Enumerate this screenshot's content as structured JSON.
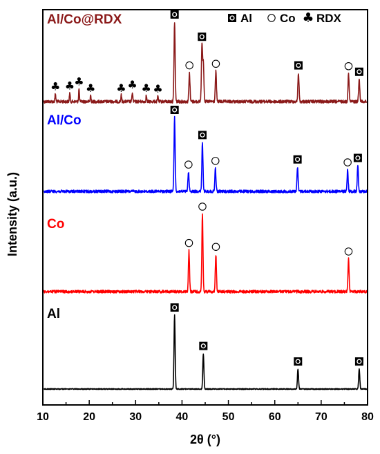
{
  "chart_data": {
    "type": "line",
    "xlabel": "2θ (°)",
    "ylabel": "Intensity (a.u.)",
    "xlim": [
      10,
      80
    ],
    "x_ticks": [
      "10",
      "20",
      "30",
      "40",
      "50",
      "60",
      "70",
      "80"
    ],
    "y_ticks_labeled": false,
    "grid": false,
    "legend": {
      "placement": "top-right",
      "entries": [
        {
          "symbol": "filled-square",
          "label": "Al"
        },
        {
          "symbol": "open-circle",
          "label": "Co"
        },
        {
          "symbol": "club",
          "label": "RDX"
        }
      ]
    },
    "series": [
      {
        "name": "Al/Co@RDX",
        "color": "#8b1a1a",
        "peaks": [
          {
            "x": 12.7,
            "h": 0.1,
            "marker": "club"
          },
          {
            "x": 15.8,
            "h": 0.11,
            "marker": "club"
          },
          {
            "x": 17.8,
            "h": 0.16,
            "marker": "club"
          },
          {
            "x": 20.3,
            "h": 0.08,
            "marker": "club"
          },
          {
            "x": 26.9,
            "h": 0.08,
            "marker": "club"
          },
          {
            "x": 29.3,
            "h": 0.12,
            "marker": "club"
          },
          {
            "x": 32.3,
            "h": 0.08,
            "marker": "club"
          },
          {
            "x": 34.8,
            "h": 0.07,
            "marker": "club"
          },
          {
            "x": 38.4,
            "h": 1.0,
            "marker": "Al"
          },
          {
            "x": 41.6,
            "h": 0.36,
            "marker": "Co"
          },
          {
            "x": 44.3,
            "h": 0.72,
            "marker": "Al"
          },
          {
            "x": 44.6,
            "h": 0.5,
            "marker": null
          },
          {
            "x": 47.3,
            "h": 0.38,
            "marker": "Co"
          },
          {
            "x": 65.1,
            "h": 0.36,
            "marker": "Al"
          },
          {
            "x": 75.9,
            "h": 0.35,
            "marker": "Co"
          },
          {
            "x": 78.2,
            "h": 0.28,
            "marker": "Al"
          }
        ]
      },
      {
        "name": "Al/Co",
        "color": "#0000ff",
        "peaks": [
          {
            "x": 38.4,
            "h": 1.0,
            "marker": "Al"
          },
          {
            "x": 41.4,
            "h": 0.26,
            "marker": "Co"
          },
          {
            "x": 44.4,
            "h": 0.66,
            "marker": "Al"
          },
          {
            "x": 47.2,
            "h": 0.31,
            "marker": "Co"
          },
          {
            "x": 64.9,
            "h": 0.33,
            "marker": "Al"
          },
          {
            "x": 75.7,
            "h": 0.29,
            "marker": "Co"
          },
          {
            "x": 77.9,
            "h": 0.35,
            "marker": "Al"
          }
        ]
      },
      {
        "name": "Co",
        "color": "#ff0000",
        "peaks": [
          {
            "x": 41.5,
            "h": 0.53,
            "marker": "Co"
          },
          {
            "x": 44.4,
            "h": 1.0,
            "marker": "Co"
          },
          {
            "x": 47.3,
            "h": 0.48,
            "marker": "Co"
          },
          {
            "x": 75.9,
            "h": 0.42,
            "marker": "Co"
          }
        ]
      },
      {
        "name": "Al",
        "color": "#000000",
        "peaks": [
          {
            "x": 38.4,
            "h": 1.0,
            "marker": "Al"
          },
          {
            "x": 44.6,
            "h": 0.48,
            "marker": "Al"
          },
          {
            "x": 65.0,
            "h": 0.27,
            "marker": "Al"
          },
          {
            "x": 78.2,
            "h": 0.27,
            "marker": "Al"
          }
        ]
      }
    ]
  }
}
